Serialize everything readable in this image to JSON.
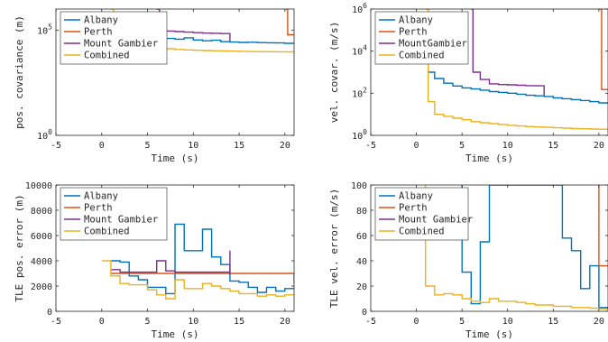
{
  "series_colors": {
    "Albany": "#0072BD",
    "Perth": "#D95319",
    "Mount Gambier": "#7E2F8E",
    "Combined": "#EDB120"
  },
  "chart_data": [
    {
      "type": "line",
      "panel": "top-left",
      "xlabel": "Time (s)",
      "ylabel": "pos. covariance (m)",
      "xlim": [
        -5,
        21
      ],
      "ylim": [
        1,
        1000000
      ],
      "yscale": "log",
      "xticks": [
        "-5",
        "0",
        "5",
        "10",
        "15",
        "20"
      ],
      "yticks": [
        {
          "base": "10",
          "exp": "0",
          "value": 1
        },
        {
          "base": "10",
          "exp": "5",
          "value": 100000
        }
      ],
      "grid": false,
      "legend": "top-left",
      "legend_labels": [
        "Albany",
        "Perth",
        "Mount Gambier",
        "Combined"
      ],
      "series": [
        {
          "name": "Albany",
          "step": true,
          "x": [
            6,
            6.3,
            7,
            8,
            9,
            10,
            11,
            12,
            13,
            14,
            15,
            16,
            17,
            18,
            19,
            20,
            21
          ],
          "y": [
            1000000,
            60000,
            40000,
            37000,
            43000,
            34000,
            31000,
            33000,
            28000,
            27000,
            26000,
            26500,
            25500,
            25000,
            24500,
            23500,
            22000
          ]
        },
        {
          "name": "Perth",
          "step": true,
          "x": [
            20,
            20.3,
            21
          ],
          "y": [
            1000000,
            60000,
            55000
          ]
        },
        {
          "name": "Mount Gambier",
          "step": true,
          "x": [
            6,
            6.3,
            7,
            8,
            9,
            10,
            11,
            12,
            13,
            14,
            14
          ],
          "y": [
            1000000,
            95000,
            90000,
            85000,
            80000,
            75000,
            72000,
            70000,
            68000,
            62000,
            30000
          ]
        },
        {
          "name": "Combined",
          "step": true,
          "x": [
            1,
            1.3,
            2,
            3,
            4,
            5,
            6,
            7,
            8,
            9,
            10,
            11,
            12,
            13,
            14,
            15,
            16,
            17,
            18,
            19,
            20,
            21
          ],
          "y": [
            1000000,
            40000,
            22000,
            19000,
            17000,
            15000,
            14000,
            13000,
            12000,
            11500,
            11000,
            10700,
            10400,
            10200,
            10000,
            9800,
            9600,
            9500,
            9400,
            9300,
            9200,
            9100
          ]
        }
      ]
    },
    {
      "type": "line",
      "panel": "top-right",
      "xlabel": "Time (s)",
      "ylabel": "vel. covar. (m/s)",
      "xlim": [
        -5,
        21
      ],
      "ylim": [
        1,
        1000000
      ],
      "yscale": "log",
      "xticks": [
        "-5",
        "0",
        "5",
        "10",
        "15",
        "20"
      ],
      "yticks": [
        {
          "base": "10",
          "exp": "0",
          "value": 1
        },
        {
          "base": "10",
          "exp": "2",
          "value": 100
        },
        {
          "base": "10",
          "exp": "4",
          "value": 10000
        },
        {
          "base": "10",
          "exp": "6",
          "value": 1000000
        }
      ],
      "grid": false,
      "legend": "top-left",
      "legend_labels": [
        "Albany",
        "Perth",
        "MountGambier",
        "Combined"
      ],
      "series": [
        {
          "name": "Albany",
          "step": true,
          "x": [
            1,
            1.3,
            2,
            3,
            4,
            5,
            6,
            7,
            8,
            9,
            10,
            11,
            12,
            13,
            14,
            15,
            16,
            17,
            18,
            19,
            20,
            21
          ],
          "y": [
            1000000,
            1000,
            500,
            300,
            220,
            180,
            160,
            140,
            120,
            110,
            100,
            90,
            80,
            75,
            70,
            60,
            55,
            50,
            45,
            40,
            35,
            32
          ]
        },
        {
          "name": "Perth",
          "step": true,
          "x": [
            20,
            20.3,
            21
          ],
          "y": [
            1000000,
            150,
            150
          ]
        },
        {
          "name": "MountGambier",
          "step": true,
          "x": [
            6,
            6.2,
            7,
            8,
            9,
            10,
            11,
            12,
            13,
            14,
            14
          ],
          "y": [
            1000000,
            1000,
            450,
            280,
            260,
            250,
            240,
            230,
            225,
            220,
            80
          ]
        },
        {
          "name": "Combined",
          "step": true,
          "x": [
            1,
            1.3,
            2,
            3,
            4,
            5,
            6,
            7,
            8,
            9,
            10,
            11,
            12,
            13,
            14,
            15,
            16,
            17,
            18,
            19,
            20,
            21
          ],
          "y": [
            1000000,
            40,
            10,
            8,
            6.5,
            5.5,
            4.5,
            4,
            3.6,
            3.3,
            3,
            2.8,
            2.6,
            2.5,
            2.4,
            2.3,
            2.2,
            2.1,
            2.05,
            2,
            1.95,
            1.9
          ]
        }
      ]
    },
    {
      "type": "line",
      "panel": "bottom-left",
      "xlabel": "Time (s)",
      "ylabel": "TLE pos. error (m)",
      "xlim": [
        -5,
        21
      ],
      "ylim": [
        0,
        10000
      ],
      "yscale": "linear",
      "xticks": [
        "-5",
        "0",
        "5",
        "10",
        "15",
        "20"
      ],
      "yticks": [
        {
          "label": "0",
          "value": 0
        },
        {
          "label": "2000",
          "value": 2000
        },
        {
          "label": "4000",
          "value": 4000
        },
        {
          "label": "6000",
          "value": 6000
        },
        {
          "label": "8000",
          "value": 8000
        },
        {
          "label": "10000",
          "value": 10000
        }
      ],
      "grid": false,
      "legend": "top-left",
      "legend_labels": [
        "Albany",
        "Perth",
        "Mount Gambier",
        "Combined"
      ],
      "series": [
        {
          "name": "Albany",
          "step": true,
          "x": [
            1,
            2,
            3,
            4,
            5,
            6,
            7,
            8,
            9,
            10,
            11,
            12,
            13,
            14,
            15,
            16,
            17,
            18,
            19,
            20,
            21
          ],
          "y": [
            4000,
            3900,
            2800,
            2500,
            1900,
            1900,
            1400,
            6900,
            4800,
            4800,
            6500,
            4300,
            3700,
            2400,
            2300,
            1900,
            1500,
            1900,
            1600,
            1800,
            1900
          ]
        },
        {
          "name": "Perth",
          "step": true,
          "x": [
            1,
            21,
            21
          ],
          "y": [
            3000,
            3000,
            2200
          ]
        },
        {
          "name": "Mount Gambier",
          "step": true,
          "x": [
            1,
            2,
            6,
            7,
            8,
            14,
            14
          ],
          "y": [
            3300,
            3100,
            4000,
            3200,
            3100,
            4800,
            2900
          ]
        },
        {
          "name": "Combined",
          "step": true,
          "x": [
            0,
            1,
            2,
            3,
            4,
            5,
            6,
            7,
            8,
            9,
            10,
            11,
            12,
            13,
            14,
            15,
            16,
            17,
            18,
            19,
            20,
            21
          ],
          "y": [
            4000,
            2800,
            2200,
            2100,
            2100,
            1700,
            1300,
            1000,
            2500,
            1800,
            1800,
            2200,
            2000,
            1800,
            1600,
            1400,
            1400,
            1200,
            1300,
            1200,
            1300,
            1300
          ]
        }
      ]
    },
    {
      "type": "line",
      "panel": "bottom-right",
      "xlabel": "Time (s)",
      "ylabel": "TLE vel. error (m/s)",
      "xlim": [
        -5,
        21
      ],
      "ylim": [
        0,
        100
      ],
      "yscale": "linear",
      "xticks": [
        "-5",
        "0",
        "5",
        "10",
        "15",
        "20"
      ],
      "yticks": [
        {
          "label": "0",
          "value": 0
        },
        {
          "label": "20",
          "value": 20
        },
        {
          "label": "40",
          "value": 40
        },
        {
          "label": "60",
          "value": 60
        },
        {
          "label": "80",
          "value": 80
        },
        {
          "label": "100",
          "value": 100
        }
      ],
      "grid": false,
      "legend": "top-left",
      "legend_labels": [
        "Albany",
        "Perth",
        "Mount Gambier",
        "Combined"
      ],
      "series": [
        {
          "name": "Albany",
          "step": true,
          "x": [
            5,
            5,
            6,
            7,
            7,
            8,
            8,
            16,
            16,
            17,
            18,
            19,
            20,
            20,
            21
          ],
          "y": [
            100,
            31,
            6,
            6,
            55,
            55,
            100,
            100,
            58,
            48,
            18,
            36,
            36,
            3,
            3
          ]
        },
        {
          "name": "Perth",
          "step": true,
          "x": [
            20,
            20,
            21
          ],
          "y": [
            100,
            36,
            36
          ]
        },
        {
          "name": "Mount Gambier",
          "step": true,
          "x": [],
          "y": []
        },
        {
          "name": "Combined",
          "step": true,
          "x": [
            1,
            1,
            2,
            3,
            4,
            5,
            6,
            7,
            8,
            9,
            10,
            11,
            12,
            13,
            14,
            15,
            16,
            17,
            18,
            19,
            20,
            21
          ],
          "y": [
            100,
            20,
            13,
            14,
            13,
            10,
            8,
            7,
            10,
            8,
            8,
            7,
            6,
            5,
            5,
            4,
            4,
            3,
            3,
            2.5,
            2,
            2
          ]
        }
      ]
    }
  ]
}
